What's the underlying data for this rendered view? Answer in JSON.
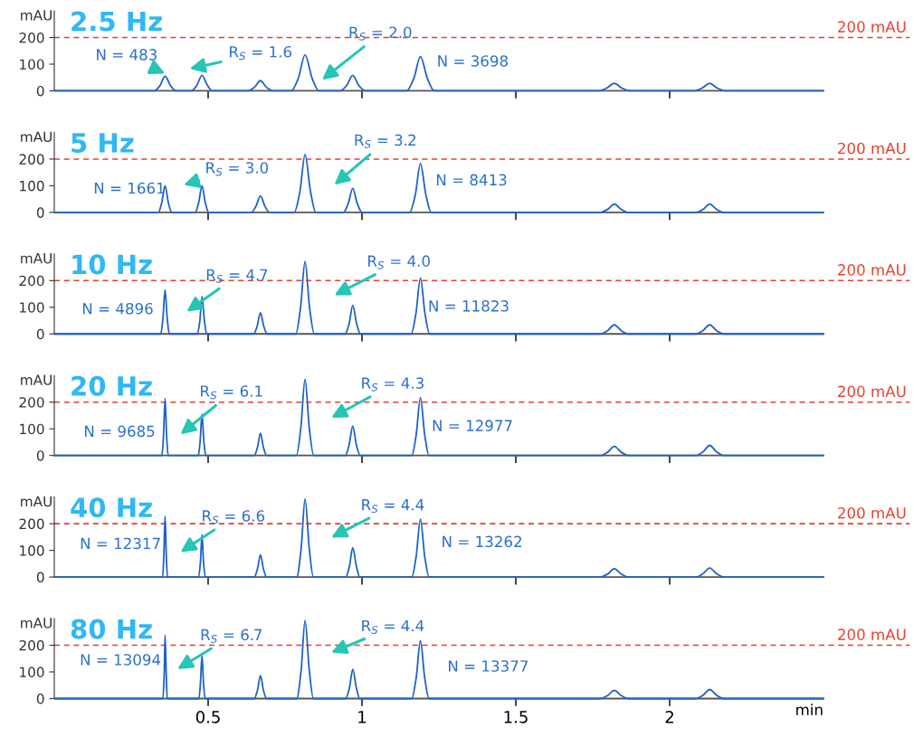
{
  "chart_data": [
    {
      "type": "line",
      "title": "2.5 Hz",
      "ylabel": "mAU",
      "xlim": [
        0,
        2.5
      ],
      "xticks": [
        0.5,
        1,
        1.5,
        2
      ],
      "ylim": [
        0,
        300
      ],
      "yticks": [
        0,
        100,
        200
      ],
      "tick_labels": "y",
      "grid": false,
      "marker": "none",
      "line_style": "solid",
      "x": [
        0,
        0.325,
        0.343,
        0.36,
        0.378,
        0.395,
        0.445,
        0.463,
        0.48,
        0.498,
        0.515,
        0.63,
        0.65,
        0.67,
        0.69,
        0.71,
        0.77,
        0.793,
        0.815,
        0.838,
        0.86,
        0.93,
        0.95,
        0.97,
        0.99,
        1.01,
        1.145,
        1.168,
        1.19,
        1.213,
        1.235,
        1.77,
        1.795,
        1.82,
        1.845,
        1.87,
        2.08,
        2.105,
        2.13,
        2.155,
        2.18,
        2.5
      ],
      "series": [
        {
          "color": "#1f62c9",
          "values": [
            0,
            0,
            19,
            55,
            19,
            0,
            0,
            20,
            58,
            20,
            0,
            0,
            13,
            38,
            13,
            0,
            0,
            47,
            135,
            47,
            0,
            0,
            20,
            58,
            20,
            0,
            0,
            45,
            128,
            45,
            0,
            0,
            10,
            28,
            10,
            0,
            0,
            10,
            28,
            10,
            0,
            0
          ]
        }
      ],
      "ref_lines": [
        {
          "axis": "y",
          "value": 200,
          "label": "200 mAU",
          "color": "#e8402a",
          "line_style": "dashed"
        }
      ],
      "annotations": [
        "N = 483",
        "R$_{S}$ = 1.6",
        "R$_{S}$ = 2.0",
        "N = 3698"
      ]
    },
    {
      "type": "line",
      "title": "5 Hz",
      "ylabel": "mAU",
      "xlim": [
        0,
        2.5
      ],
      "xticks": [
        0.5,
        1,
        1.5,
        2
      ],
      "ylim": [
        0,
        300
      ],
      "yticks": [
        0,
        100,
        200
      ],
      "tick_labels": "y",
      "grid": false,
      "marker": "none",
      "line_style": "solid",
      "x": [
        0,
        0.338,
        0.349,
        0.36,
        0.371,
        0.382,
        0.458,
        0.469,
        0.48,
        0.491,
        0.502,
        0.64,
        0.655,
        0.67,
        0.685,
        0.7,
        0.78,
        0.798,
        0.815,
        0.833,
        0.85,
        0.94,
        0.955,
        0.97,
        0.985,
        1.0,
        1.155,
        1.173,
        1.19,
        1.208,
        1.225,
        1.775,
        1.798,
        1.82,
        1.843,
        1.865,
        2.085,
        2.108,
        2.13,
        2.153,
        2.175,
        2.5
      ],
      "series": [
        {
          "color": "#1f62c9",
          "values": [
            0,
            0,
            35,
            100,
            35,
            0,
            0,
            35,
            100,
            35,
            0,
            0,
            22,
            62,
            22,
            0,
            0,
            76,
            217,
            76,
            0,
            0,
            32,
            90,
            32,
            0,
            0,
            64,
            183,
            64,
            0,
            0,
            11,
            31,
            11,
            0,
            0,
            11,
            31,
            11,
            0,
            0
          ]
        }
      ],
      "ref_lines": [
        {
          "axis": "y",
          "value": 200,
          "label": "200 mAU",
          "color": "#e8402a",
          "line_style": "dashed"
        }
      ],
      "annotations": [
        "N = 1661",
        "R$_{S}$ = 3.0",
        "R$_{S}$ = 3.2",
        "N = 8413"
      ]
    },
    {
      "type": "line",
      "title": "10 Hz",
      "ylabel": "mAU",
      "xlim": [
        0,
        2.5
      ],
      "xticks": [
        0.5,
        1,
        1.5,
        2
      ],
      "ylim": [
        0,
        300
      ],
      "yticks": [
        0,
        100,
        200
      ],
      "tick_labels": "y",
      "grid": false,
      "marker": "none",
      "line_style": "solid",
      "x": [
        0,
        0.346,
        0.353,
        0.36,
        0.367,
        0.374,
        0.465,
        0.473,
        0.48,
        0.488,
        0.495,
        0.648,
        0.659,
        0.67,
        0.681,
        0.692,
        0.785,
        0.8,
        0.815,
        0.83,
        0.845,
        0.945,
        0.958,
        0.97,
        0.983,
        0.995,
        1.16,
        1.175,
        1.19,
        1.205,
        1.22,
        1.775,
        1.798,
        1.82,
        1.843,
        1.865,
        2.085,
        2.108,
        2.13,
        2.153,
        2.175,
        2.5
      ],
      "series": [
        {
          "color": "#1f62c9",
          "values": [
            0,
            0,
            58,
            165,
            58,
            0,
            0,
            49,
            140,
            49,
            0,
            0,
            28,
            79,
            28,
            0,
            0,
            95,
            272,
            95,
            0,
            0,
            37,
            107,
            37,
            0,
            0,
            74,
            210,
            74,
            0,
            0,
            12,
            34,
            12,
            0,
            0,
            12,
            34,
            12,
            0,
            0
          ]
        }
      ],
      "ref_lines": [
        {
          "axis": "y",
          "value": 200,
          "label": "200 mAU",
          "color": "#e8402a",
          "line_style": "dashed"
        }
      ],
      "annotations": [
        "N = 4896",
        "R$_{S}$ = 4.7",
        "R$_{S}$ = 4.0",
        "N = 11823"
      ]
    },
    {
      "type": "line",
      "title": "20 Hz",
      "ylabel": "mAU",
      "xlim": [
        0,
        2.5
      ],
      "xticks": [
        0.5,
        1,
        1.5,
        2
      ],
      "ylim": [
        0,
        300
      ],
      "yticks": [
        0,
        100,
        200
      ],
      "tick_labels": "y",
      "grid": false,
      "marker": "none",
      "line_style": "solid",
      "x": [
        0,
        0.35,
        0.355,
        0.36,
        0.365,
        0.37,
        0.468,
        0.474,
        0.48,
        0.486,
        0.492,
        0.65,
        0.66,
        0.67,
        0.68,
        0.69,
        0.787,
        0.801,
        0.815,
        0.829,
        0.843,
        0.946,
        0.958,
        0.97,
        0.982,
        0.994,
        1.162,
        1.176,
        1.19,
        1.204,
        1.218,
        1.775,
        1.798,
        1.82,
        1.843,
        1.865,
        2.085,
        2.108,
        2.13,
        2.153,
        2.175,
        2.5
      ],
      "series": [
        {
          "color": "#1f62c9",
          "values": [
            0,
            0,
            75,
            214,
            75,
            0,
            0,
            54,
            155,
            54,
            0,
            0,
            29,
            83,
            29,
            0,
            0,
            100,
            286,
            100,
            0,
            0,
            39,
            110,
            39,
            0,
            0,
            76,
            217,
            76,
            0,
            0,
            12,
            34,
            12,
            0,
            0,
            13,
            38,
            13,
            0,
            0
          ]
        }
      ],
      "ref_lines": [
        {
          "axis": "y",
          "value": 200,
          "label": "200 mAU",
          "color": "#e8402a",
          "line_style": "dashed"
        }
      ],
      "annotations": [
        "N = 9685",
        "R$_{S}$ = 6.1",
        "R$_{S}$ = 4.3",
        "N = 12977"
      ]
    },
    {
      "type": "line",
      "title": "40 Hz",
      "ylabel": "mAU",
      "xlim": [
        0,
        2.5
      ],
      "xticks": [
        0.5,
        1,
        1.5,
        2
      ],
      "ylim": [
        0,
        300
      ],
      "yticks": [
        0,
        100,
        200
      ],
      "tick_labels": "y",
      "grid": false,
      "marker": "none",
      "line_style": "solid",
      "x": [
        0,
        0.352,
        0.356,
        0.36,
        0.364,
        0.368,
        0.469,
        0.475,
        0.48,
        0.485,
        0.491,
        0.65,
        0.66,
        0.67,
        0.68,
        0.69,
        0.788,
        0.802,
        0.815,
        0.829,
        0.842,
        0.947,
        0.959,
        0.97,
        0.982,
        0.993,
        1.162,
        1.176,
        1.19,
        1.204,
        1.218,
        1.775,
        1.798,
        1.82,
        1.843,
        1.865,
        2.085,
        2.108,
        2.13,
        2.153,
        2.175,
        2.5
      ],
      "series": [
        {
          "color": "#1f62c9",
          "values": [
            0,
            0,
            80,
            228,
            80,
            0,
            0,
            56,
            159,
            56,
            0,
            0,
            29,
            83,
            29,
            0,
            0,
            103,
            293,
            103,
            0,
            0,
            39,
            110,
            39,
            0,
            0,
            76,
            217,
            76,
            0,
            0,
            11,
            31,
            11,
            0,
            0,
            12,
            34,
            12,
            0,
            0
          ]
        }
      ],
      "ref_lines": [
        {
          "axis": "y",
          "value": 200,
          "label": "200 mAU",
          "color": "#e8402a",
          "line_style": "dashed"
        }
      ],
      "annotations": [
        "N = 12317",
        "R$_{S}$ = 6.6",
        "R$_{S}$ = 4.4",
        "N = 13262"
      ]
    },
    {
      "type": "line",
      "title": "80 Hz",
      "ylabel": "mAU",
      "xlabel": "min",
      "xlim": [
        0,
        2.5
      ],
      "xticks": [
        0.5,
        1,
        1.5,
        2
      ],
      "ylim": [
        0,
        300
      ],
      "yticks": [
        0,
        100,
        200
      ],
      "grid": false,
      "marker": "none",
      "line_style": "solid",
      "x": [
        0,
        0.353,
        0.357,
        0.36,
        0.364,
        0.367,
        0.47,
        0.475,
        0.48,
        0.485,
        0.49,
        0.65,
        0.66,
        0.67,
        0.68,
        0.69,
        0.788,
        0.802,
        0.815,
        0.829,
        0.842,
        0.947,
        0.959,
        0.97,
        0.982,
        0.993,
        1.162,
        1.176,
        1.19,
        1.204,
        1.218,
        1.775,
        1.798,
        1.82,
        1.843,
        1.865,
        2.085,
        2.108,
        2.13,
        2.153,
        2.175,
        2.5
      ],
      "series": [
        {
          "color": "#1f62c9",
          "values": [
            0,
            0,
            83,
            238,
            83,
            0,
            0,
            57,
            162,
            57,
            0,
            0,
            30,
            86,
            30,
            0,
            0,
            103,
            293,
            103,
            0,
            0,
            39,
            110,
            39,
            0,
            0,
            76,
            217,
            76,
            0,
            0,
            11,
            31,
            11,
            0,
            0,
            12,
            34,
            12,
            0,
            0
          ]
        }
      ],
      "ref_lines": [
        {
          "axis": "y",
          "value": 200,
          "label": "200 mAU",
          "color": "#e8402a",
          "line_style": "dashed"
        }
      ],
      "annotations": [
        "N = 13094",
        "R$_{S}$ = 6.7",
        "R$_{S}$ = 4.4",
        "N = 13377"
      ]
    }
  ]
}
